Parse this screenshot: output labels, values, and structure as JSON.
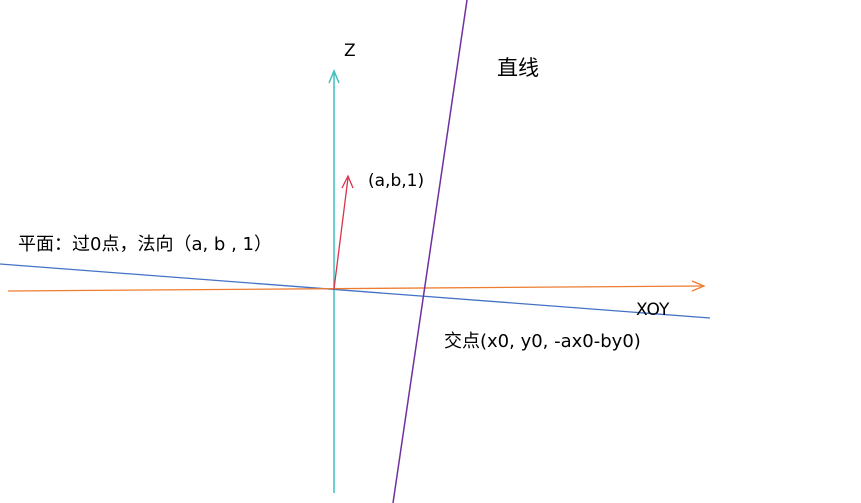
{
  "labels": {
    "z_axis": "Z",
    "line": "直线",
    "normal_vector": "(a,b,1)",
    "plane": "平面：过0点，法向（a, b , 1）",
    "xoy": "XOY",
    "intersection": "交点(x0, y0, -ax0-by0)"
  },
  "colors": {
    "z_axis": "#3fbfbf",
    "line": "#7030a0",
    "normal_vector": "#d9334a",
    "plane": "#4472c4",
    "x_axis": "#ed7d31",
    "text": "#000000"
  }
}
